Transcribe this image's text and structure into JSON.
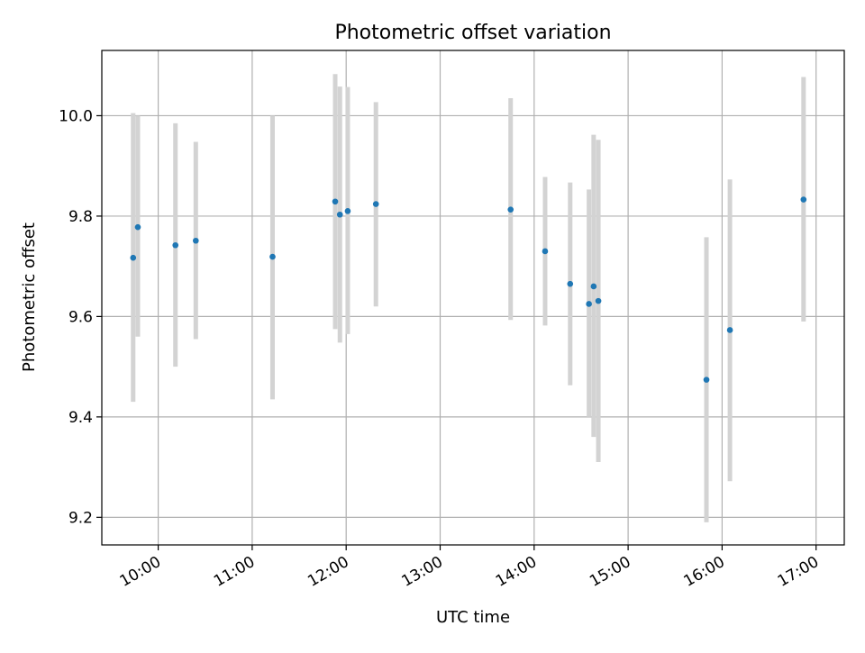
{
  "chart_data": {
    "type": "scatter",
    "title": "Photometric offset variation",
    "xlabel": "UTC time",
    "ylabel": "Photometric offset",
    "xlim": [
      "09:24",
      "17:18"
    ],
    "ylim": [
      9.145,
      10.13
    ],
    "x_ticks": [
      "10:00",
      "11:00",
      "12:00",
      "13:00",
      "14:00",
      "15:00",
      "16:00",
      "17:00"
    ],
    "y_ticks": [
      "9.2",
      "9.4",
      "9.6",
      "9.8",
      "10.0"
    ],
    "y_tick_values": [
      9.2,
      9.4,
      9.6,
      9.8,
      10.0
    ],
    "grid": true,
    "colors": {
      "point": "#1f77b4",
      "errorbar": "#d3d3d3",
      "grid": "#b0b0b0"
    },
    "series": [
      {
        "points": [
          {
            "x": "09:44",
            "y": 9.717,
            "low": 9.43,
            "high": 10.005
          },
          {
            "x": "09:47",
            "y": 9.778,
            "low": 9.56,
            "high": 10.0
          },
          {
            "x": "10:11",
            "y": 9.742,
            "low": 9.5,
            "high": 9.985
          },
          {
            "x": "10:24",
            "y": 9.751,
            "low": 9.555,
            "high": 9.948
          },
          {
            "x": "11:13",
            "y": 9.719,
            "low": 9.435,
            "high": 10.0
          },
          {
            "x": "11:53",
            "y": 9.829,
            "low": 9.575,
            "high": 10.083
          },
          {
            "x": "11:56",
            "y": 9.803,
            "low": 9.548,
            "high": 10.058
          },
          {
            "x": "12:01",
            "y": 9.81,
            "low": 9.565,
            "high": 10.057
          },
          {
            "x": "12:19",
            "y": 9.824,
            "low": 9.62,
            "high": 10.027
          },
          {
            "x": "13:45",
            "y": 9.813,
            "low": 9.593,
            "high": 10.035
          },
          {
            "x": "14:07",
            "y": 9.73,
            "low": 9.582,
            "high": 9.878
          },
          {
            "x": "14:23",
            "y": 9.665,
            "low": 9.463,
            "high": 9.867
          },
          {
            "x": "14:35",
            "y": 9.625,
            "low": 9.4,
            "high": 9.853
          },
          {
            "x": "14:38",
            "y": 9.66,
            "low": 9.36,
            "high": 9.962
          },
          {
            "x": "14:41",
            "y": 9.631,
            "low": 9.31,
            "high": 9.952
          },
          {
            "x": "15:50",
            "y": 9.474,
            "low": 9.19,
            "high": 9.758
          },
          {
            "x": "16:05",
            "y": 9.573,
            "low": 9.272,
            "high": 9.873
          },
          {
            "x": "16:52",
            "y": 9.833,
            "low": 9.59,
            "high": 10.077
          }
        ]
      }
    ]
  }
}
